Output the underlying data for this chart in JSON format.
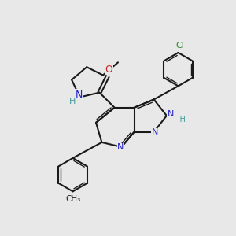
{
  "background_color": "#e8e8e8",
  "bond_color": "#1a1a1a",
  "N_color": "#2222cc",
  "O_color": "#cc2222",
  "Cl_color": "#228822",
  "H_color": "#449999",
  "figsize": [
    3.0,
    3.0
  ],
  "dpi": 100,
  "xlim": [
    0,
    10
  ],
  "ylim": [
    0,
    10
  ]
}
